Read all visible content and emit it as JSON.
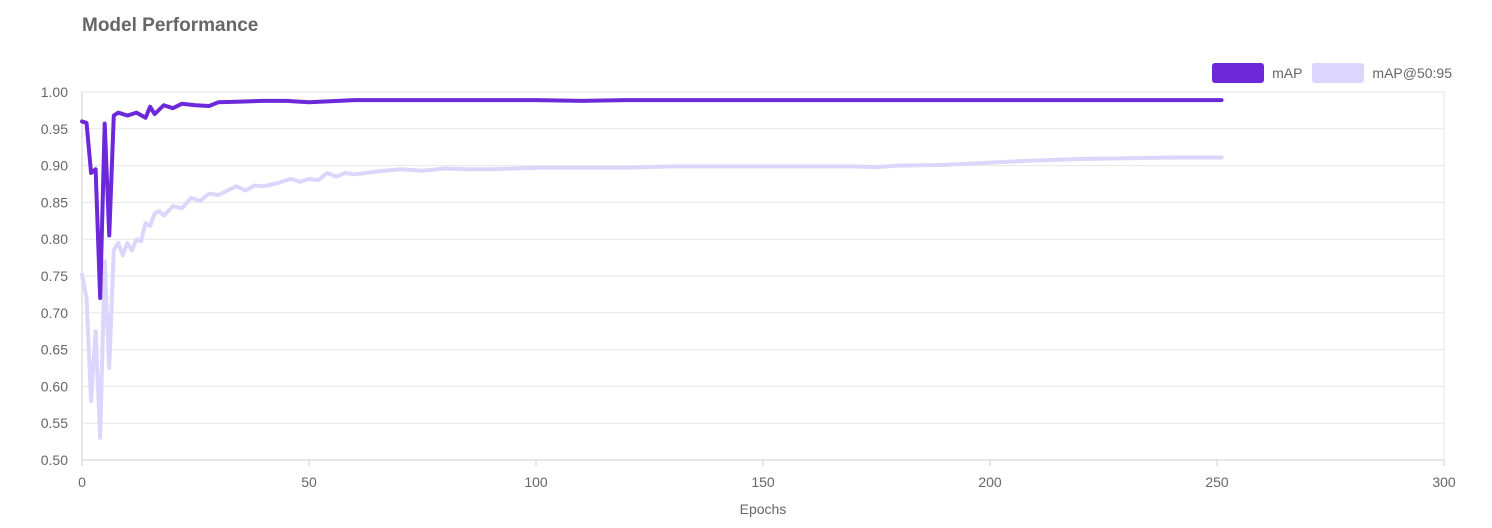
{
  "chart_data": {
    "type": "line",
    "title": "Model Performance",
    "xlabel": "Epochs",
    "ylabel": "",
    "xlim": [
      0,
      300
    ],
    "ylim": [
      0.5,
      1.0
    ],
    "x_ticks": [
      0,
      50,
      100,
      150,
      200,
      250,
      300
    ],
    "y_ticks": [
      0.5,
      0.55,
      0.6,
      0.65,
      0.7,
      0.75,
      0.8,
      0.85,
      0.9,
      0.95,
      1.0
    ],
    "grid": true,
    "legend_position": "top-right",
    "series": [
      {
        "name": "mAP",
        "color": "#6d28d9",
        "points": [
          [
            0,
            0.96
          ],
          [
            1,
            0.958
          ],
          [
            2,
            0.89
          ],
          [
            3,
            0.895
          ],
          [
            4,
            0.72
          ],
          [
            5,
            0.957
          ],
          [
            6,
            0.805
          ],
          [
            7,
            0.968
          ],
          [
            8,
            0.972
          ],
          [
            10,
            0.968
          ],
          [
            12,
            0.972
          ],
          [
            14,
            0.965
          ],
          [
            15,
            0.98
          ],
          [
            16,
            0.97
          ],
          [
            18,
            0.982
          ],
          [
            20,
            0.978
          ],
          [
            22,
            0.984
          ],
          [
            25,
            0.982
          ],
          [
            28,
            0.981
          ],
          [
            30,
            0.986
          ],
          [
            35,
            0.987
          ],
          [
            40,
            0.988
          ],
          [
            45,
            0.988
          ],
          [
            50,
            0.986
          ],
          [
            60,
            0.989
          ],
          [
            70,
            0.989
          ],
          [
            80,
            0.989
          ],
          [
            90,
            0.989
          ],
          [
            100,
            0.989
          ],
          [
            110,
            0.988
          ],
          [
            120,
            0.989
          ],
          [
            130,
            0.989
          ],
          [
            140,
            0.989
          ],
          [
            150,
            0.989
          ],
          [
            160,
            0.989
          ],
          [
            170,
            0.989
          ],
          [
            180,
            0.989
          ],
          [
            190,
            0.989
          ],
          [
            200,
            0.989
          ],
          [
            210,
            0.989
          ],
          [
            220,
            0.989
          ],
          [
            230,
            0.989
          ],
          [
            240,
            0.989
          ],
          [
            251,
            0.989
          ]
        ]
      },
      {
        "name": "mAP@50:95",
        "color": "#dcd6fc",
        "points": [
          [
            0,
            0.752
          ],
          [
            1,
            0.72
          ],
          [
            2,
            0.58
          ],
          [
            3,
            0.675
          ],
          [
            4,
            0.53
          ],
          [
            5,
            0.77
          ],
          [
            6,
            0.625
          ],
          [
            7,
            0.785
          ],
          [
            8,
            0.795
          ],
          [
            9,
            0.778
          ],
          [
            10,
            0.795
          ],
          [
            11,
            0.785
          ],
          [
            12,
            0.8
          ],
          [
            13,
            0.797
          ],
          [
            14,
            0.822
          ],
          [
            15,
            0.818
          ],
          [
            16,
            0.835
          ],
          [
            17,
            0.838
          ],
          [
            18,
            0.832
          ],
          [
            20,
            0.845
          ],
          [
            22,
            0.842
          ],
          [
            24,
            0.856
          ],
          [
            26,
            0.852
          ],
          [
            28,
            0.862
          ],
          [
            30,
            0.86
          ],
          [
            32,
            0.866
          ],
          [
            34,
            0.872
          ],
          [
            36,
            0.866
          ],
          [
            38,
            0.873
          ],
          [
            40,
            0.872
          ],
          [
            43,
            0.876
          ],
          [
            46,
            0.882
          ],
          [
            48,
            0.878
          ],
          [
            50,
            0.882
          ],
          [
            52,
            0.88
          ],
          [
            54,
            0.89
          ],
          [
            56,
            0.885
          ],
          [
            58,
            0.89
          ],
          [
            60,
            0.888
          ],
          [
            65,
            0.892
          ],
          [
            70,
            0.895
          ],
          [
            75,
            0.893
          ],
          [
            80,
            0.896
          ],
          [
            85,
            0.895
          ],
          [
            90,
            0.895
          ],
          [
            95,
            0.896
          ],
          [
            100,
            0.897
          ],
          [
            110,
            0.897
          ],
          [
            120,
            0.897
          ],
          [
            130,
            0.899
          ],
          [
            140,
            0.899
          ],
          [
            150,
            0.899
          ],
          [
            160,
            0.899
          ],
          [
            170,
            0.899
          ],
          [
            175,
            0.898
          ],
          [
            180,
            0.9
          ],
          [
            190,
            0.901
          ],
          [
            200,
            0.904
          ],
          [
            210,
            0.907
          ],
          [
            220,
            0.909
          ],
          [
            230,
            0.91
          ],
          [
            240,
            0.911
          ],
          [
            251,
            0.911
          ]
        ]
      }
    ]
  }
}
